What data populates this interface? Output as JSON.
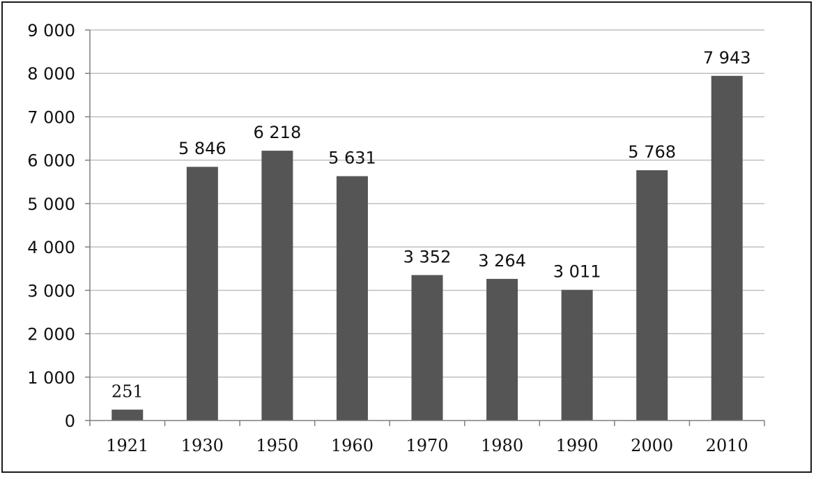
{
  "chart_data": {
    "type": "bar",
    "categories": [
      "1921",
      "1930",
      "1950",
      "1960",
      "1970",
      "1980",
      "1990",
      "2000",
      "2010"
    ],
    "values": [
      251,
      5846,
      6218,
      5631,
      3352,
      3264,
      3011,
      5768,
      7943
    ],
    "value_labels": [
      "251",
      "5 846",
      "6 218",
      "5 631",
      "3 352",
      "3 264",
      "3 011",
      "5 768",
      "7 943"
    ],
    "ylim": [
      0,
      9000
    ],
    "yticks": [
      0,
      1000,
      2000,
      3000,
      4000,
      5000,
      6000,
      7000,
      8000,
      9000
    ],
    "ytick_labels": [
      "0",
      "1 000",
      "2 000",
      "3 000",
      "4 000",
      "5 000",
      "6 000",
      "7 000",
      "8 000",
      "9 000"
    ],
    "grid": true,
    "legend": "none",
    "bar_color": "#555555",
    "grid_color": "#bfbfbf",
    "title": "",
    "xlabel": "",
    "ylabel": ""
  }
}
